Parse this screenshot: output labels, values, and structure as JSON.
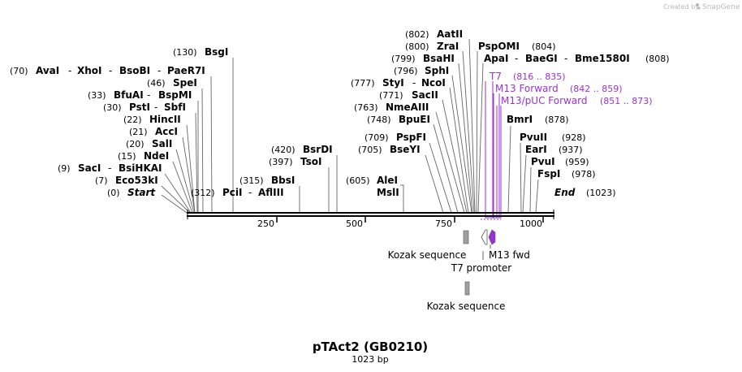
{
  "credit": {
    "prefix": "Created by",
    "brand": "SnapGene"
  },
  "title": "pTAct2 (GB0210)",
  "subtitle": "1023 bp",
  "sequence_length": 1023,
  "axis_ticks": [
    "250",
    "500",
    "750",
    "1000"
  ],
  "sites": [
    {
      "pos": "(802)",
      "name": "AatII"
    },
    {
      "pos": "(800)",
      "name": "ZraI"
    },
    {
      "pos": "(804)",
      "name": "PspOMI"
    },
    {
      "pos": "(799)",
      "name": "BsaHI"
    },
    {
      "pos": "(808)",
      "names": [
        "ApaI",
        "BaeGI",
        "Bme1580I"
      ]
    },
    {
      "pos": "(796)",
      "name": "SphI"
    },
    {
      "pos": "(777)",
      "names": [
        "StyI",
        "NcoI"
      ]
    },
    {
      "pos": "(771)",
      "name": "SacII"
    },
    {
      "pos": "(763)",
      "name": "NmeAIII"
    },
    {
      "pos": "(748)",
      "name": "BpuEI"
    },
    {
      "pos": "(878)",
      "name": "BmrI"
    },
    {
      "pos": "(709)",
      "name": "PspFI"
    },
    {
      "pos": "(705)",
      "name": "BseYI"
    },
    {
      "pos": "(928)",
      "name": "PvuII"
    },
    {
      "pos": "(937)",
      "name": "EarI"
    },
    {
      "pos": "(959)",
      "name": "PvuI"
    },
    {
      "pos": "(978)",
      "name": "FspI"
    },
    {
      "pos": "(605)",
      "names": [
        "AleI",
        "MslI"
      ]
    },
    {
      "pos": "(1023)",
      "name": "End"
    },
    {
      "pos": "(420)",
      "name": "BsrDI"
    },
    {
      "pos": "(397)",
      "name": "TsoI"
    },
    {
      "pos": "(315)",
      "name": "BbsI"
    },
    {
      "pos": "(312)",
      "names": [
        "PciI",
        "AflIII"
      ]
    },
    {
      "pos": "(130)",
      "name": "BsgI"
    },
    {
      "pos": "(70)",
      "names": [
        "AvaI",
        "XhoI",
        "BsoBI",
        "PaeR7I"
      ]
    },
    {
      "pos": "(46)",
      "name": "SpeI"
    },
    {
      "pos": "(33)",
      "names": [
        "BfuAI",
        "BspMI"
      ]
    },
    {
      "pos": "(30)",
      "names": [
        "PstI",
        "SbfI"
      ]
    },
    {
      "pos": "(22)",
      "name": "HincII"
    },
    {
      "pos": "(21)",
      "name": "AccI"
    },
    {
      "pos": "(20)",
      "name": "SalI"
    },
    {
      "pos": "(15)",
      "name": "NdeI"
    },
    {
      "pos": "(9)",
      "names": [
        "SacI",
        "BsiHKAI"
      ]
    },
    {
      "pos": "(7)",
      "name": "Eco53kI"
    },
    {
      "pos": "(0)",
      "name": "Start"
    }
  ],
  "primers": [
    {
      "name": "T7",
      "range": "(816 .. 835)"
    },
    {
      "name": "M13 Forward",
      "range": "(842 .. 859)"
    },
    {
      "name": "M13/pUC Forward",
      "range": "(851 .. 873)"
    }
  ],
  "features": [
    {
      "name": "Kozak sequence"
    },
    {
      "name": "M13 fwd"
    },
    {
      "name": "T7 promoter"
    },
    {
      "name": "Kozak sequence"
    }
  ],
  "colors": {
    "primer": "#9b30d9",
    "feature_gray": "#a0a0a0",
    "backbone": "#000000",
    "leader_line": "#666666"
  }
}
